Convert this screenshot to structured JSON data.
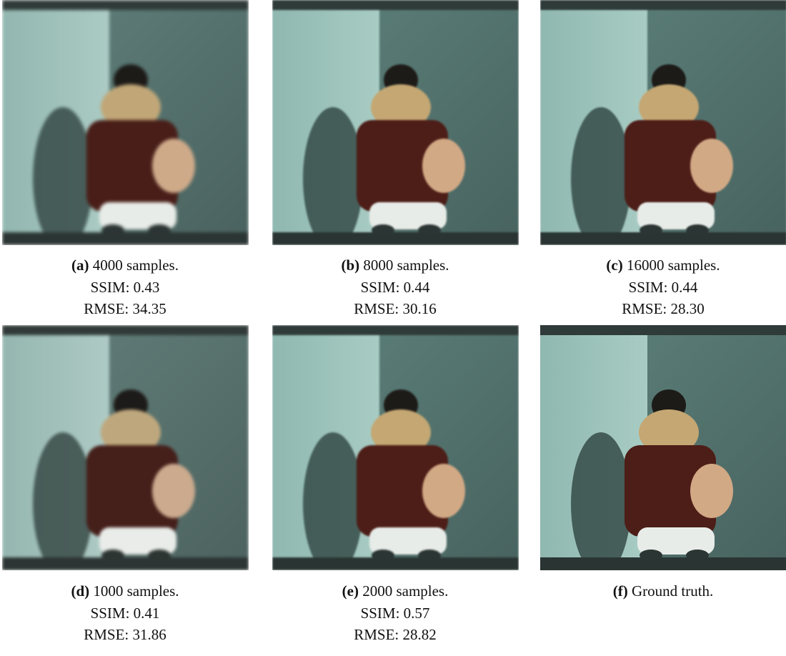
{
  "panels": [
    {
      "label": "(a)",
      "text": "4000 samples.",
      "ssim": "SSIM: 0.43",
      "rmse": "RMSE: 34.35"
    },
    {
      "label": "(b)",
      "text": "8000 samples.",
      "ssim": "SSIM: 0.44",
      "rmse": "RMSE: 30.16"
    },
    {
      "label": "(c)",
      "text": "16000 samples.",
      "ssim": "SSIM: 0.44",
      "rmse": "RMSE: 28.30"
    },
    {
      "label": "(d)",
      "text": "1000 samples.",
      "ssim": "SSIM: 0.41",
      "rmse": "RMSE: 31.86"
    },
    {
      "label": "(e)",
      "text": "2000 samples.",
      "ssim": "SSIM: 0.57",
      "rmse": "RMSE: 28.82"
    },
    {
      "label": "(f)",
      "text": "Ground truth."
    }
  ]
}
